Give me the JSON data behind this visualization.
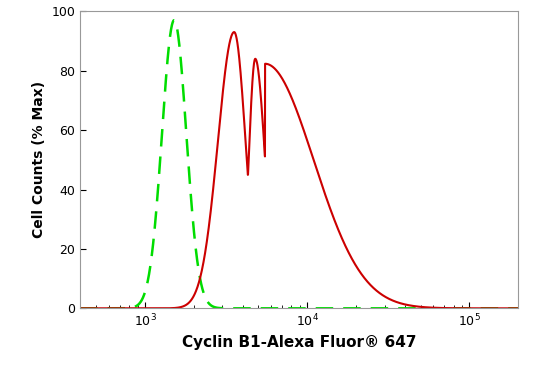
{
  "title": "",
  "xlabel": "Cyclin B1-Alexa Fluor® 647",
  "ylabel": "Cell Counts (% Max)",
  "xlim_log": [
    2.6,
    5.3
  ],
  "ylim": [
    0,
    100
  ],
  "yticks": [
    0,
    20,
    40,
    60,
    80,
    100
  ],
  "background_color": "#ffffff",
  "plot_bg_color": "#ffffff",
  "green_color": "#00dd00",
  "red_color": "#cc0000",
  "green_peak_log": 3.18,
  "green_sigma_log": 0.075,
  "green_peak_height": 97,
  "red_peak1_log": 3.55,
  "red_peak1_height": 93,
  "red_peak1_sig_l": 0.1,
  "red_peak1_sig_r": 0.07,
  "red_notch_log": 3.63,
  "red_notch_depth": 8,
  "red_notch_sig": 0.03,
  "red_peak2_log": 3.68,
  "red_peak2_height": 84,
  "red_peak2_sig_l": 0.04,
  "red_peak2_sig_r": 0.06,
  "red_tail_sig_r": 0.3,
  "red_bump1_log": 3.9,
  "red_bump1_height": 30,
  "red_bump1_sig": 0.05,
  "red_bump2_log": 4.02,
  "red_bump2_height": 17,
  "red_bump2_sig": 0.06
}
